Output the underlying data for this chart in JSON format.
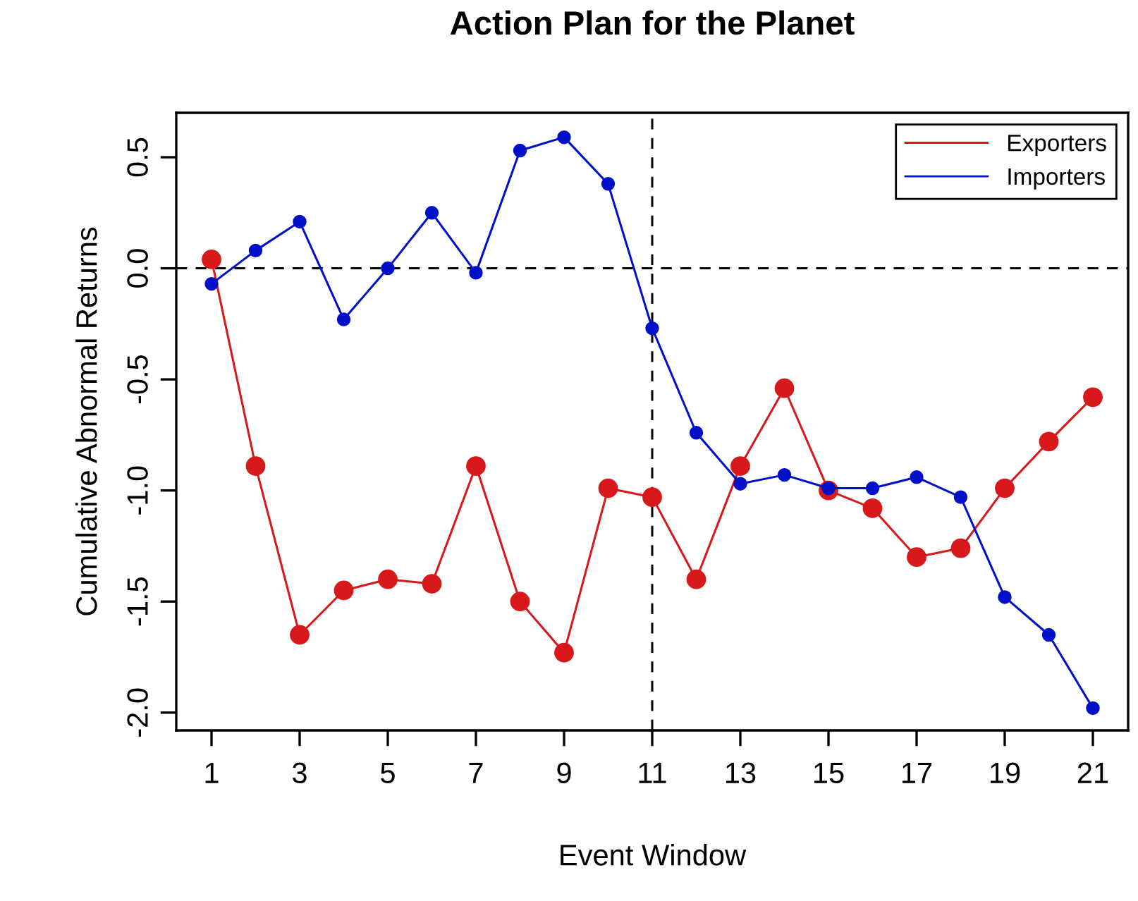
{
  "chart_data": {
    "type": "line",
    "title": "Action Plan for the Planet",
    "xlabel": "Event Window",
    "ylabel": "Cumulative Abnormal Returns",
    "x": [
      1,
      2,
      3,
      4,
      5,
      6,
      7,
      8,
      9,
      10,
      11,
      12,
      13,
      14,
      15,
      16,
      17,
      18,
      19,
      20,
      21
    ],
    "series": [
      {
        "name": "Exporters",
        "color": "#d7191c",
        "values": [
          0.04,
          -0.89,
          -1.65,
          -1.45,
          -1.4,
          -1.42,
          -0.89,
          -1.5,
          -1.73,
          -0.99,
          -1.03,
          -1.4,
          -0.89,
          -0.54,
          -1.0,
          -1.08,
          -1.3,
          -1.26,
          -0.99,
          -0.78,
          -0.58
        ]
      },
      {
        "name": "Importers",
        "color": "#0010c8",
        "values": [
          -0.07,
          0.08,
          0.21,
          -0.23,
          0.0,
          0.25,
          -0.02,
          0.53,
          0.59,
          0.38,
          -0.27,
          -0.74,
          -0.97,
          -0.93,
          -0.99,
          -0.99,
          -0.94,
          -1.03,
          -1.48,
          -1.65,
          -1.98
        ]
      }
    ],
    "xlim": [
      0.2,
      21.8
    ],
    "ylim": [
      -2.08,
      0.7
    ],
    "xticks": [
      1,
      3,
      5,
      7,
      9,
      11,
      13,
      15,
      17,
      19,
      21
    ],
    "yticks": [
      {
        "value": 0.5,
        "label": "0.5"
      },
      {
        "value": 0,
        "label": "0.0"
      },
      {
        "value": -0.5,
        "label": "-0.5"
      },
      {
        "value": -1,
        "label": "-1.0"
      },
      {
        "value": -1.5,
        "label": "-1.5"
      },
      {
        "value": -2,
        "label": "-2.0"
      }
    ],
    "ref_lines": [
      {
        "axis": "y",
        "value": 0,
        "color": "#000000",
        "line_style": "dashed"
      },
      {
        "axis": "x",
        "value": 11,
        "color": "#000000",
        "line_style": "dashed"
      }
    ],
    "marker": "circle",
    "line_style": "solid",
    "grid": false,
    "legend": "top right"
  }
}
